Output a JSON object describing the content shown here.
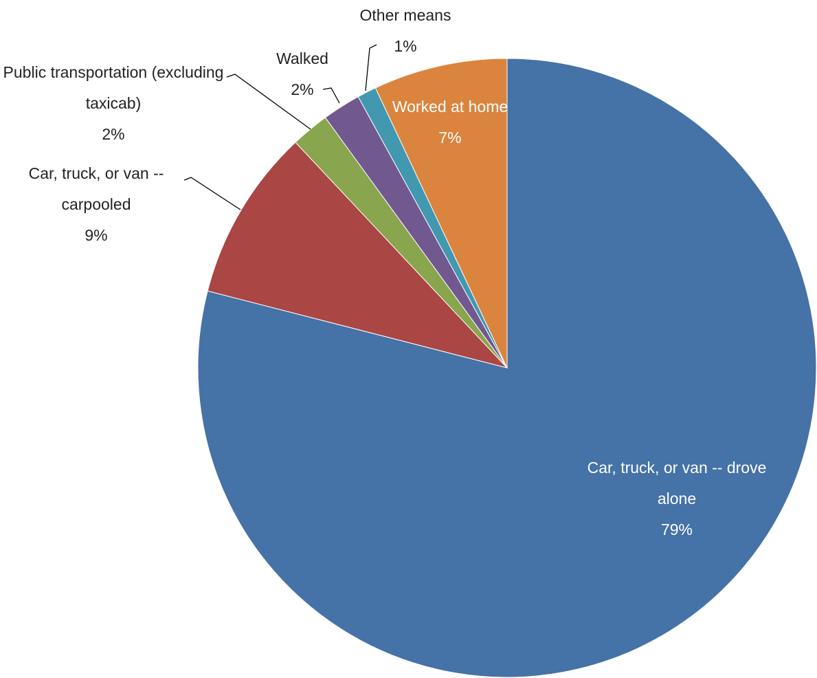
{
  "chart_data": {
    "type": "pie",
    "categories": [
      "Car, truck, or van -- drove alone",
      "Car, truck, or van -- carpooled",
      "Public transportation (excluding taxicab)",
      "Walked",
      "Other means",
      "Worked at home"
    ],
    "values": [
      79,
      9,
      2,
      2,
      1,
      7
    ],
    "value_labels": [
      "79%",
      "9%",
      "2%",
      "2%",
      "1%",
      "7%"
    ],
    "colors": [
      "#4572a7",
      "#aa4643",
      "#89a54e",
      "#71588f",
      "#4198af",
      "#db843d"
    ]
  }
}
